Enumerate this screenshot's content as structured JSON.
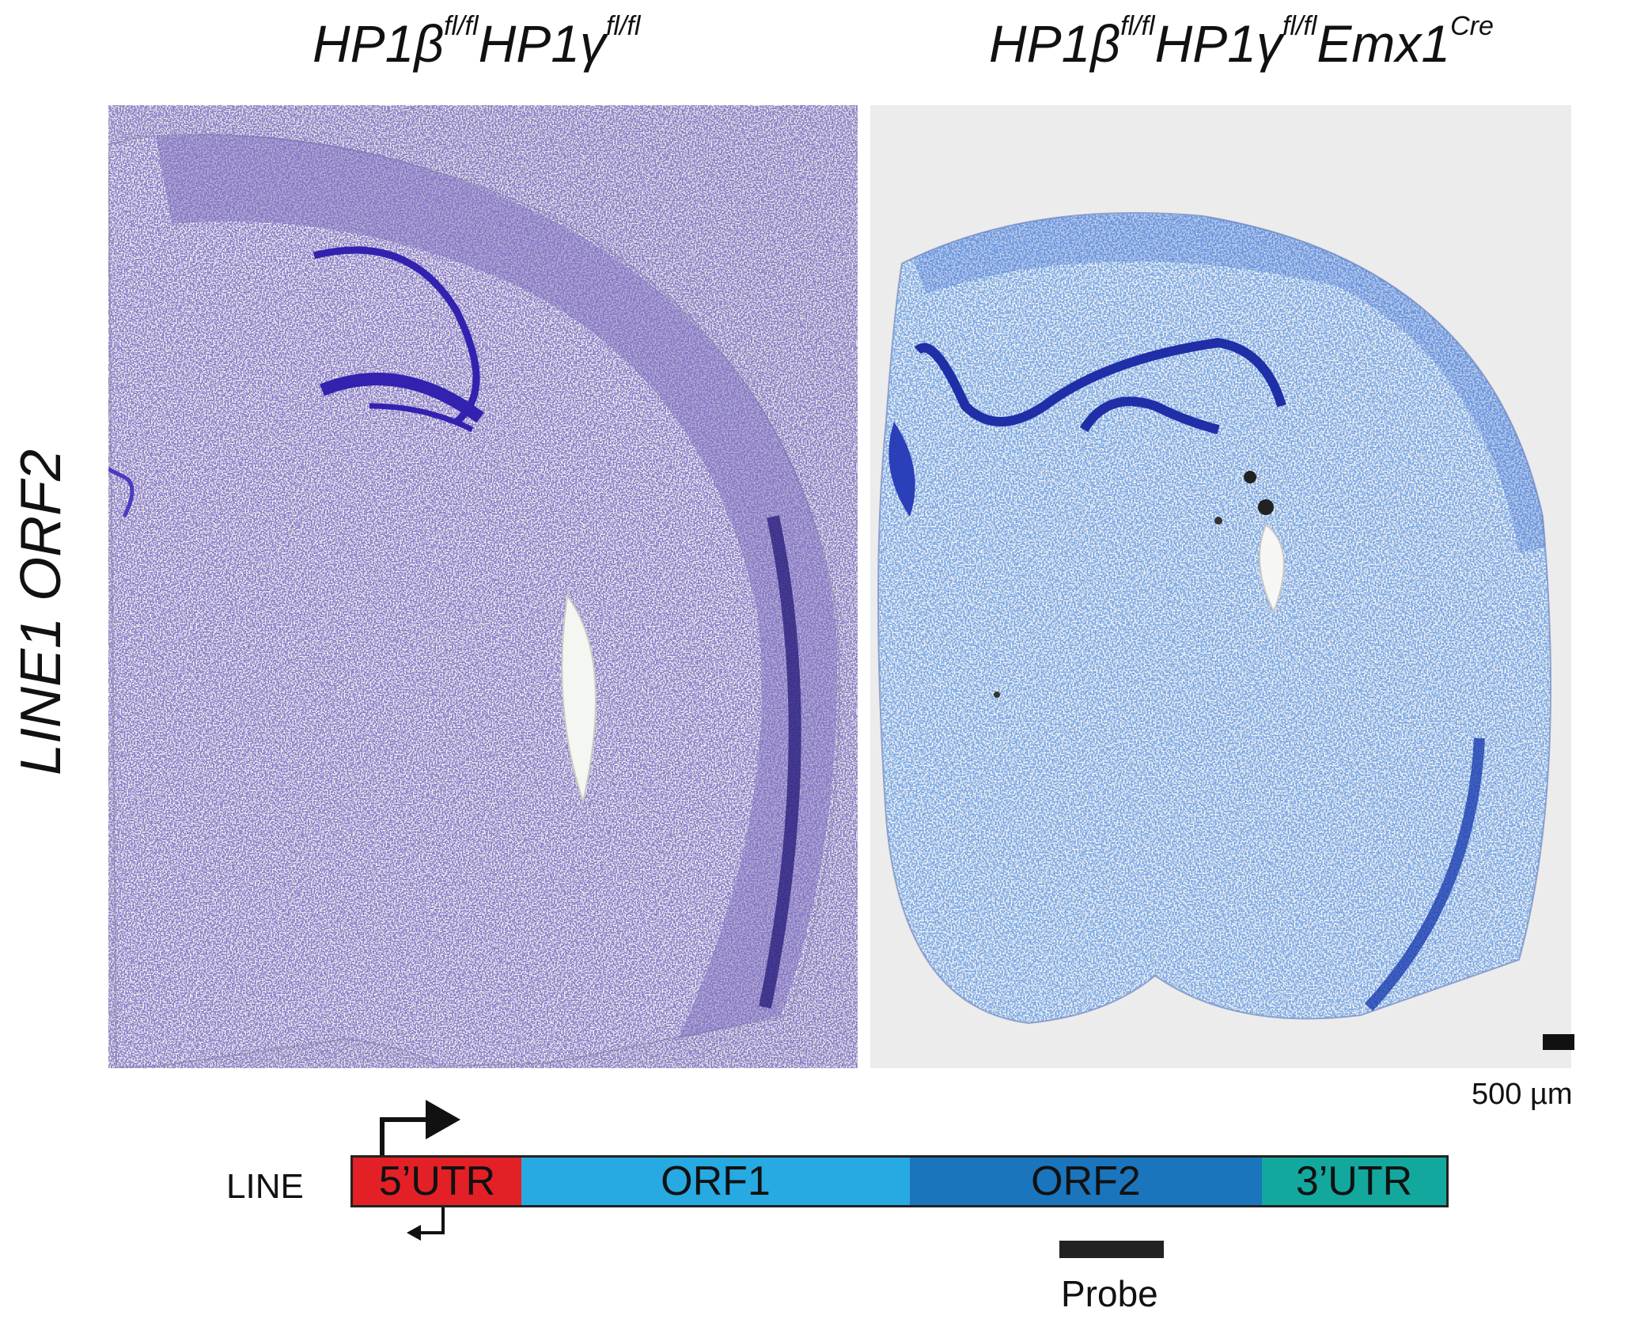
{
  "titles": {
    "left": {
      "base1": "HP1β",
      "sup1": "fl/fl",
      "base2": "HP1γ",
      "sup2": "fl/fl"
    },
    "right": {
      "base1": "HP1β",
      "sup1": "fl/fl",
      "base2": "HP1γ",
      "sup2": "fl/fl",
      "base3": "Emx1",
      "sup3": "Cre"
    }
  },
  "row_label": "LINE1 ORF2",
  "scale_bar": {
    "label": "500 µm"
  },
  "diagram": {
    "line_label": "LINE",
    "segments": [
      "5’UTR",
      "ORF1",
      "ORF2",
      "3’UTR"
    ],
    "probe_label": "Probe"
  },
  "colors": {
    "utr5": "#e32026",
    "orf1": "#27a9e1",
    "orf2": "#1b75bc",
    "utr3": "#13a89e",
    "stain_left": "#3a2a96",
    "stain_right": "#1e4fc0"
  }
}
